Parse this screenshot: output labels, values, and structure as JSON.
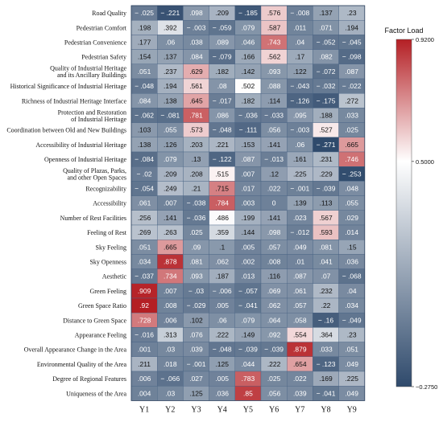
{
  "chart_data": {
    "type": "heatmap",
    "title": "",
    "xlabel": "",
    "ylabel": "",
    "columns": [
      "Y1",
      "Y2",
      "Y3",
      "Y4",
      "Y5",
      "Y6",
      "Y7",
      "Y8",
      "Y9"
    ],
    "rows": [
      "Road Quality",
      "Pedestrian Comfort",
      "Pedestrian Convenience",
      "Pedestrian Safety",
      "Quality of Industrial Heritage\nand its Ancillary Buildings",
      "Historical Significance of Industrial Heritage",
      "Richness of Industrial Heritage Interface",
      "Protection and Restoration\nof Industrial Heritage",
      "Coordination between Old and New Buildings",
      "Accessibility of Industrial Heritage",
      "Openness of Industrial Heritage",
      "Quality of Plazas, Parks,\nand other Open Spaces",
      "Recognizability",
      "Accessibility",
      "Number of Rest Facilities",
      "Feeling of Rest",
      "Sky Feeling",
      "Sky Openness",
      "Aesthetic",
      "Green Feeling",
      "Green Space Ratio",
      "Distance to Green Space",
      "Appearance Feeling",
      "Overall Appearance Change in the Area",
      "Environmental Quality of the Area",
      "Degree of Regional Features",
      "Uniqueness of the Area"
    ],
    "values": [
      [
        -0.025,
        -0.221,
        0.098,
        0.209,
        -0.185,
        0.576,
        -0.008,
        0.137,
        0.23
      ],
      [
        0.198,
        0.392,
        -0.003,
        -0.059,
        0.079,
        0.587,
        0.011,
        0.071,
        0.194
      ],
      [
        0.177,
        0.06,
        0.038,
        0.089,
        0.046,
        0.743,
        0.04,
        -0.052,
        -0.045
      ],
      [
        0.154,
        0.137,
        0.084,
        -0.079,
        0.166,
        0.562,
        0.17,
        0.082,
        -0.098
      ],
      [
        0.051,
        0.237,
        0.629,
        0.182,
        0.142,
        0.093,
        0.122,
        -0.072,
        0.087
      ],
      [
        -0.048,
        0.194,
        0.561,
        0.08,
        0.502,
        0.088,
        -0.043,
        -0.032,
        -0.022
      ],
      [
        0.084,
        0.138,
        0.645,
        -0.017,
        0.182,
        0.114,
        -0.126,
        -0.175,
        0.272
      ],
      [
        -0.062,
        -0.081,
        0.781,
        0.086,
        -0.036,
        -0.033,
        0.095,
        0.188,
        0.033
      ],
      [
        0.103,
        0.055,
        0.573,
        -0.048,
        -0.111,
        0.056,
        -0.003,
        0.527,
        0.025
      ],
      [
        0.138,
        0.126,
        0.203,
        0.221,
        0.153,
        0.141,
        0.06,
        -0.271,
        0.665
      ],
      [
        -0.084,
        0.079,
        0.13,
        -0.122,
        0.087,
        -0.013,
        0.161,
        0.231,
        0.746
      ],
      [
        -0.02,
        0.209,
        0.208,
        0.515,
        0.007,
        0.12,
        0.225,
        0.229,
        -0.253
      ],
      [
        -0.054,
        0.249,
        0.21,
        0.715,
        0.017,
        0.022,
        -0.001,
        -0.039,
        0.048
      ],
      [
        0.061,
        0.007,
        -0.038,
        0.784,
        0.003,
        0,
        0.139,
        0.113,
        0.055
      ],
      [
        0.256,
        0.141,
        -0.036,
        0.486,
        0.199,
        0.141,
        0.023,
        0.567,
        0.029
      ],
      [
        0.269,
        0.263,
        0.025,
        0.359,
        0.144,
        0.098,
        -0.012,
        0.593,
        0.014
      ],
      [
        0.051,
        0.665,
        0.09,
        0.1,
        0.005,
        0.057,
        0.049,
        0.081,
        0.15
      ],
      [
        0.034,
        0.878,
        0.081,
        0.062,
        0.002,
        0.008,
        0.01,
        0.041,
        0.036
      ],
      [
        -0.037,
        0.734,
        0.093,
        0.187,
        0.013,
        0.116,
        0.087,
        0.07,
        -0.068
      ],
      [
        0.909,
        0.007,
        -0.03,
        -0.006,
        -0.057,
        0.069,
        0.061,
        0.232,
        0.04
      ],
      [
        0.92,
        0.008,
        -0.029,
        0.005,
        -0.041,
        0.062,
        0.057,
        0.22,
        0.034
      ],
      [
        0.728,
        0.006,
        0.102,
        0.06,
        0.079,
        0.064,
        0.058,
        -0.16,
        -0.049
      ],
      [
        -0.016,
        0.313,
        0.076,
        0.222,
        0.149,
        0.092,
        0.554,
        0.364,
        0.23
      ],
      [
        0.001,
        0.03,
        0.039,
        -0.048,
        -0.039,
        -0.039,
        0.879,
        0.033,
        0.051
      ],
      [
        0.211,
        0.018,
        -0.001,
        0.125,
        0.044,
        0.222,
        0.654,
        -0.123,
        0.049
      ],
      [
        0.006,
        -0.066,
        0.027,
        0.005,
        0.783,
        0.025,
        0.022,
        0.169,
        0.225
      ],
      [
        0.004,
        0.03,
        0.125,
        0.036,
        0.85,
        0.056,
        0.039,
        -0.041,
        0.049
      ]
    ],
    "colorbar": {
      "title": "Factor Load",
      "min": -0.275,
      "mid": 0.5,
      "max": 0.92,
      "tick_labels": [
        "0.9200",
        "0.5000",
        "−0.2750"
      ],
      "colors": {
        "low": "#2f4a6c",
        "mid": "#ffffff",
        "high": "#b41f24"
      }
    },
    "grid": true,
    "legend": "right"
  }
}
